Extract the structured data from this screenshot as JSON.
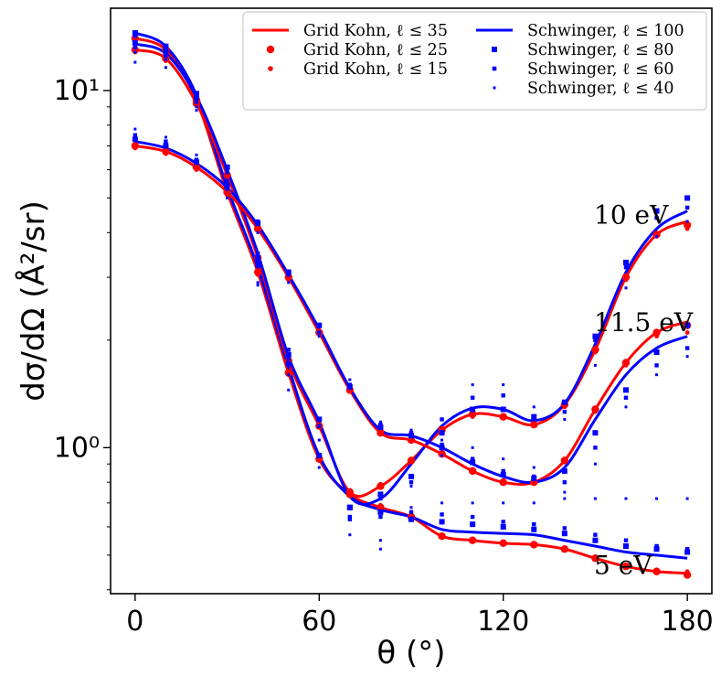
{
  "chart_data": {
    "type": "scatter",
    "title": "",
    "xlabel": "θ (°)",
    "ylabel": "dσ/dΩ (Å²/sr)",
    "xlim": [
      -8,
      188
    ],
    "ylim": [
      0.39,
      17.0
    ],
    "yscale": "log",
    "x_ticks": [
      0,
      60,
      120,
      180
    ],
    "x_tick_labels": [
      "0",
      "60",
      "120",
      "180"
    ],
    "y_ticks": [
      1,
      10
    ],
    "y_tick_labels": [
      "10⁰",
      "10¹"
    ],
    "grid": false,
    "legend_position": "top-right",
    "legend": [
      {
        "label": "Grid Kohn, ℓ ≤ 35",
        "color": "#ff0000",
        "style": "line"
      },
      {
        "label": "Grid Kohn, ℓ ≤ 25",
        "color": "#ff0000",
        "style": "circle-large"
      },
      {
        "label": "Grid Kohn, ℓ ≤ 15",
        "color": "#ff0000",
        "style": "circle-small"
      },
      {
        "label": "Schwinger, ℓ ≤ 100",
        "color": "#0000ff",
        "style": "line"
      },
      {
        "label": "Schwinger, ℓ ≤ 80",
        "color": "#0000ff",
        "style": "square-large"
      },
      {
        "label": "Schwinger, ℓ ≤ 60",
        "color": "#0000ff",
        "style": "square-medium"
      },
      {
        "label": "Schwinger, ℓ ≤ 40",
        "color": "#0000ff",
        "style": "square-small"
      }
    ],
    "annotations": [
      {
        "text": "10 eV",
        "x": 160,
        "y": 4.5
      },
      {
        "text": "11.5 eV",
        "x": 160,
        "y": 2.25
      },
      {
        "text": "5 eV",
        "x": 160,
        "y": 0.47
      }
    ],
    "curves_x": [
      0,
      10,
      20,
      30,
      40,
      50,
      60,
      70,
      80,
      90,
      100,
      110,
      120,
      130,
      140,
      150,
      160,
      170,
      180
    ],
    "series": [
      {
        "name": "5 eV Grid Kohn ℓ≤35",
        "color": "#ff0000",
        "style": "line",
        "y": [
          14.0,
          13.0,
          9.4,
          5.2,
          3.1,
          1.62,
          0.93,
          0.74,
          0.68,
          0.64,
          0.565,
          0.55,
          0.54,
          0.535,
          0.52,
          0.49,
          0.465,
          0.45,
          0.445
        ]
      },
      {
        "name": "5 eV Schwinger ℓ≤100",
        "color": "#0000ff",
        "style": "line",
        "y": [
          14.5,
          13.3,
          9.7,
          5.35,
          3.2,
          1.68,
          0.95,
          0.73,
          0.67,
          0.64,
          0.59,
          0.58,
          0.575,
          0.57,
          0.55,
          0.53,
          0.51,
          0.5,
          0.49
        ]
      },
      {
        "name": "10 eV Grid Kohn ℓ≤35",
        "color": "#ff0000",
        "style": "line",
        "y": [
          13.0,
          12.3,
          9.2,
          5.8,
          3.4,
          1.75,
          1.15,
          0.75,
          0.78,
          0.92,
          1.12,
          1.24,
          1.22,
          1.16,
          1.32,
          1.88,
          3.0,
          3.95,
          4.3
        ]
      },
      {
        "name": "10 eV Schwinger ℓ≤100",
        "color": "#0000ff",
        "style": "line",
        "y": [
          13.5,
          12.7,
          9.6,
          6.0,
          3.5,
          1.8,
          1.18,
          0.73,
          0.72,
          0.9,
          1.15,
          1.29,
          1.28,
          1.19,
          1.33,
          1.95,
          3.1,
          4.1,
          4.6
        ]
      },
      {
        "name": "11.5 eV Grid Kohn ℓ≤35",
        "color": "#ff0000",
        "style": "line",
        "y": [
          7.0,
          6.75,
          6.1,
          5.2,
          4.1,
          3.0,
          2.1,
          1.45,
          1.1,
          1.05,
          0.96,
          0.86,
          0.8,
          0.8,
          0.92,
          1.28,
          1.73,
          2.1,
          2.25
        ]
      },
      {
        "name": "11.5 eV Schwinger ℓ≤100",
        "color": "#0000ff",
        "style": "line",
        "y": [
          7.2,
          6.9,
          6.25,
          5.35,
          4.2,
          3.05,
          2.15,
          1.47,
          1.12,
          1.08,
          1.0,
          0.9,
          0.83,
          0.8,
          0.88,
          1.2,
          1.6,
          1.9,
          2.05
        ]
      }
    ],
    "scatter_x": [
      0,
      10,
      20,
      30,
      40,
      50,
      60,
      70,
      80,
      90,
      100,
      110,
      120,
      130,
      140,
      150,
      160,
      170,
      180
    ],
    "scatter": [
      {
        "name": "Grid Kohn ℓ≤25",
        "color": "#ff0000",
        "marker": "circle",
        "size": 4.2,
        "sets": [
          [
            14.0,
            13.0,
            9.4,
            5.2,
            3.1,
            1.62,
            0.93,
            0.74,
            0.68,
            0.64,
            0.565,
            0.55,
            0.54,
            0.535,
            0.52,
            0.49,
            0.465,
            0.45,
            0.44
          ],
          [
            13.0,
            12.3,
            9.2,
            5.8,
            3.4,
            1.75,
            1.15,
            0.75,
            0.78,
            0.92,
            1.12,
            1.24,
            1.22,
            1.16,
            1.32,
            1.88,
            3.0,
            3.95,
            4.2
          ],
          [
            7.0,
            6.75,
            6.1,
            5.2,
            4.1,
            3.0,
            2.1,
            1.45,
            1.1,
            1.05,
            0.96,
            0.86,
            0.8,
            0.8,
            0.92,
            1.28,
            1.73,
            2.1,
            2.2
          ]
        ]
      },
      {
        "name": "Grid Kohn ℓ≤15",
        "color": "#ff0000",
        "marker": "circle",
        "size": 2.4,
        "sets": [
          [
            13.7,
            12.8,
            9.3,
            5.1,
            3.05,
            1.6,
            0.92,
            0.75,
            0.69,
            0.645,
            0.57,
            0.555,
            0.545,
            0.54,
            0.525,
            0.495,
            0.47,
            0.455,
            0.45
          ],
          [
            12.8,
            12.1,
            9.1,
            5.7,
            3.35,
            1.72,
            1.14,
            0.76,
            0.79,
            0.93,
            1.11,
            1.22,
            1.21,
            1.15,
            1.3,
            1.85,
            2.95,
            3.9,
            4.1
          ],
          [
            6.9,
            6.65,
            6.0,
            5.1,
            4.05,
            2.95,
            2.08,
            1.44,
            1.11,
            1.06,
            0.97,
            0.87,
            0.81,
            0.81,
            0.93,
            1.26,
            1.7,
            2.05,
            2.1
          ]
        ]
      },
      {
        "name": "Schwinger ℓ≤80",
        "color": "#0000ff",
        "marker": "square",
        "size": 6.0,
        "sets": [
          [
            14.5,
            13.3,
            9.8,
            5.4,
            3.25,
            1.72,
            0.95,
            0.68,
            0.66,
            0.63,
            0.62,
            0.61,
            0.6,
            0.59,
            0.575,
            0.55,
            0.53,
            0.52,
            0.51
          ],
          [
            13.6,
            12.8,
            9.6,
            6.1,
            3.4,
            1.82,
            1.2,
            0.68,
            0.74,
            0.83,
            1.1,
            1.28,
            1.28,
            1.22,
            1.34,
            2.05,
            3.3,
            4.6,
            5.0
          ],
          [
            7.3,
            7.0,
            6.3,
            5.4,
            4.25,
            3.1,
            2.2,
            1.48,
            1.14,
            1.08,
            1.0,
            0.91,
            0.84,
            0.82,
            0.86,
            1.1,
            1.45,
            1.85,
            2.2
          ]
        ]
      },
      {
        "name": "Schwinger ℓ≤60",
        "color": "#0000ff",
        "marker": "square",
        "size": 4.4,
        "sets": [
          [
            14.2,
            13.1,
            9.5,
            5.3,
            3.3,
            1.78,
            0.95,
            0.64,
            0.64,
            0.66,
            0.65,
            0.64,
            0.62,
            0.61,
            0.595,
            0.57,
            0.55,
            0.53,
            0.52
          ],
          [
            13.2,
            12.5,
            9.3,
            5.9,
            3.5,
            1.88,
            1.15,
            0.63,
            0.72,
            0.8,
            1.2,
            1.38,
            1.4,
            1.2,
            1.26,
            2.0,
            3.2,
            4.4,
            4.7
          ],
          [
            7.5,
            7.2,
            6.4,
            5.5,
            4.3,
            3.05,
            2.1,
            1.5,
            1.16,
            1.1,
            1.02,
            0.93,
            0.86,
            0.83,
            0.8,
            1.0,
            1.38,
            1.7,
            1.9
          ]
        ]
      },
      {
        "name": "Schwinger ℓ≤40",
        "color": "#0000ff",
        "marker": "square",
        "size": 3.0,
        "sets": [
          [
            12.0,
            12.2,
            9.0,
            5.0,
            2.9,
            1.45,
            0.88,
            0.57,
            0.55,
            0.68,
            0.7,
            0.7,
            0.7,
            0.7,
            0.72,
            0.72,
            0.72,
            0.72,
            0.72
          ],
          [
            12.8,
            11.6,
            8.8,
            5.6,
            2.85,
            1.6,
            1.05,
            0.63,
            0.52,
            0.78,
            0.95,
            1.5,
            1.5,
            1.3,
            1.2,
            1.7,
            2.8,
            3.9,
            4.3
          ],
          [
            7.8,
            7.4,
            6.6,
            5.6,
            4.0,
            2.9,
            2.05,
            1.55,
            1.18,
            1.12,
            1.05,
            1.0,
            0.93,
            0.88,
            0.75,
            0.9,
            1.3,
            1.6,
            1.8
          ]
        ]
      }
    ]
  }
}
